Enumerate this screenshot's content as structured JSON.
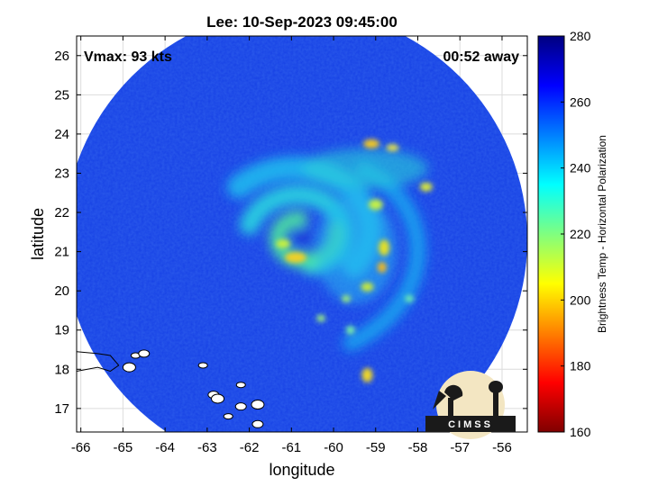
{
  "chart_data": {
    "type": "heatmap",
    "title": "Lee: 10-Sep-2023 09:45:00",
    "xlabel": "longitude",
    "ylabel": "latitude",
    "xlim": [
      -66.1,
      -55.4
    ],
    "ylim": [
      16.4,
      26.5
    ],
    "x_ticks": [
      -66,
      -65,
      -64,
      -63,
      -62,
      -61,
      -60,
      -59,
      -58,
      -57,
      -56
    ],
    "y_ticks": [
      17,
      18,
      19,
      20,
      21,
      22,
      23,
      24,
      25,
      26
    ],
    "grid": true,
    "annotations": {
      "vmax": "Vmax: 93 kts",
      "away": "00:52 away"
    },
    "swath": {
      "center": [
        -60.9,
        21.3
      ],
      "radius_deg": 5.5
    },
    "storm_center": [
      -60.75,
      21.4
    ],
    "colorbar": {
      "label": "Brightness Temp - Horizontal Polarization",
      "range": [
        160,
        280
      ],
      "ticks": [
        160,
        180,
        200,
        220,
        240,
        260,
        280
      ],
      "colormap": "jet"
    },
    "islands": [
      [
        -64.7,
        18.35
      ],
      [
        -64.5,
        18.4
      ],
      [
        -64.85,
        18.05
      ],
      [
        -63.1,
        18.1
      ],
      [
        -62.85,
        17.35
      ],
      [
        -62.75,
        17.25
      ],
      [
        -62.2,
        17.6
      ],
      [
        -62.2,
        17.05
      ],
      [
        -61.8,
        17.1
      ],
      [
        -62.5,
        16.8
      ],
      [
        -61.8,
        16.6
      ]
    ],
    "coast_points": [
      [
        -66.1,
        18.45
      ],
      [
        -65.6,
        18.4
      ],
      [
        -65.3,
        18.35
      ],
      [
        -65.1,
        18.1
      ],
      [
        -65.3,
        17.95
      ],
      [
        -65.6,
        18.05
      ],
      [
        -66.1,
        17.95
      ]
    ]
  },
  "logo": {
    "text": "CIMSS"
  }
}
